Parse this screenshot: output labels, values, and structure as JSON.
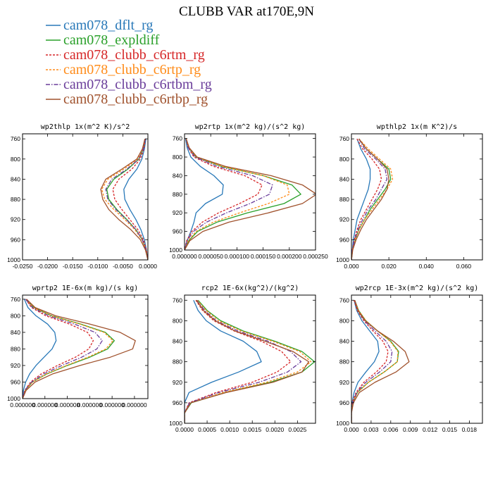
{
  "figure": {
    "title": "CLUBB VAR at170E,9N"
  },
  "colors": {
    "cam078_dflt_rg": "#2878b8",
    "cam078_expldiff": "#2aa02a",
    "cam078_clubb_c6rtm_rg": "#d62728",
    "cam078_clubb_c6rtp_rg": "#ff8c1a",
    "cam078_clubb_c6rtbm_rg": "#6a3d9a",
    "cam078_clubb_c6rtbp_rg": "#a0522d"
  },
  "legend": [
    {
      "name": "cam078_dflt_rg",
      "style": "solid"
    },
    {
      "name": "cam078_expldiff",
      "style": "solid"
    },
    {
      "name": "cam078_clubb_c6rtm_rg",
      "style": "dashed"
    },
    {
      "name": "cam078_clubb_c6rtp_rg",
      "style": "dashed"
    },
    {
      "name": "cam078_clubb_c6rtbm_rg",
      "style": "dashdot"
    },
    {
      "name": "cam078_clubb_c6rtbp_rg",
      "style": "solid"
    }
  ],
  "chart_data": [
    {
      "type": "line",
      "title": "wp2thlp  1x(m^2 K)/s^2",
      "xlim": [
        -0.025,
        0.0
      ],
      "ylim": [
        1000,
        750
      ],
      "xticks": [
        "-0.0250",
        "-0.0200",
        "-0.0150",
        "-0.0100",
        "-0.0050",
        "0.0000"
      ],
      "xtick_values": [
        -0.025,
        -0.02,
        -0.015,
        -0.01,
        -0.005,
        0.0
      ],
      "yticks": [
        760,
        800,
        840,
        880,
        920,
        960,
        1000
      ],
      "y": [
        760,
        780,
        800,
        820,
        840,
        860,
        880,
        900,
        920,
        940,
        960,
        980,
        1000
      ],
      "series": [
        {
          "name": "cam078_dflt_rg",
          "values": [
            -0.0004,
            -0.0007,
            -0.0012,
            -0.0022,
            -0.0038,
            -0.0048,
            -0.0046,
            -0.0036,
            -0.0024,
            -0.0014,
            -0.0007,
            -0.0003,
            0.0
          ]
        },
        {
          "name": "cam078_expldiff",
          "values": [
            -0.0005,
            -0.0009,
            -0.0018,
            -0.004,
            -0.0068,
            -0.0082,
            -0.0078,
            -0.0062,
            -0.0042,
            -0.0024,
            -0.0011,
            -0.0004,
            0.0
          ]
        },
        {
          "name": "cam078_clubb_c6rtm_rg",
          "values": [
            -0.0005,
            -0.0008,
            -0.0015,
            -0.0032,
            -0.0058,
            -0.007,
            -0.0066,
            -0.0052,
            -0.0036,
            -0.002,
            -0.0009,
            -0.0003,
            0.0
          ]
        },
        {
          "name": "cam078_clubb_c6rtp_rg",
          "values": [
            -0.0006,
            -0.001,
            -0.002,
            -0.0048,
            -0.008,
            -0.0092,
            -0.0086,
            -0.0068,
            -0.0046,
            -0.0026,
            -0.0012,
            -0.0004,
            0.0
          ]
        },
        {
          "name": "cam078_clubb_c6rtbm_rg",
          "values": [
            -0.0005,
            -0.0009,
            -0.0018,
            -0.0042,
            -0.0072,
            -0.0084,
            -0.008,
            -0.0064,
            -0.0043,
            -0.0024,
            -0.0011,
            -0.0004,
            0.0
          ]
        },
        {
          "name": "cam078_clubb_c6rtbp_rg",
          "values": [
            -0.0006,
            -0.0011,
            -0.0022,
            -0.0052,
            -0.0084,
            -0.0094,
            -0.009,
            -0.0078,
            -0.0058,
            -0.0034,
            -0.0015,
            -0.0005,
            0.0
          ]
        }
      ]
    },
    {
      "type": "line",
      "title": "wp2rtp  1x(m^2 kg)/(s^2 kg)",
      "xlim": [
        0.0,
        0.00025
      ],
      "ylim": [
        1000,
        750
      ],
      "xticks": [
        "0.000000",
        "0.000050",
        "0.000100",
        "0.000150",
        "0.000200",
        "0.000250"
      ],
      "xtick_values": [
        0.0,
        5e-05,
        0.0001,
        0.00015,
        0.0002,
        0.00025
      ],
      "yticks": [
        760,
        800,
        840,
        880,
        920,
        960,
        1000
      ],
      "y": [
        760,
        780,
        800,
        820,
        840,
        860,
        880,
        900,
        920,
        940,
        960,
        980,
        1000
      ],
      "series": [
        {
          "name": "cam078_dflt_rg",
          "values": [
            2e-06,
            5e-06,
            1.2e-05,
            3e-05,
            5.6e-05,
            7.4e-05,
            7.2e-05,
            4e-05,
            2.2e-05,
            1.8e-05,
            1.2e-05,
            5e-06,
            0.0
          ]
        },
        {
          "name": "cam078_expldiff",
          "values": [
            3e-06,
            8e-06,
            2.2e-05,
            7e-05,
            0.00015,
            0.000205,
            0.000222,
            0.00019,
            0.00012,
            6.2e-05,
            2.5e-05,
            8e-06,
            0.0
          ]
        },
        {
          "name": "cam078_clubb_c6rtm_rg",
          "values": [
            3e-06,
            7e-06,
            1.8e-05,
            5.5e-05,
            0.000115,
            0.000148,
            0.00014,
            0.000105,
            6.5e-05,
            3.4e-05,
            1.4e-05,
            4e-06,
            0.0
          ]
        },
        {
          "name": "cam078_clubb_c6rtp_rg",
          "values": [
            3e-06,
            8e-06,
            2.2e-05,
            7.2e-05,
            0.00015,
            0.000196,
            0.0002,
            0.00016,
            0.000105,
            5.5e-05,
            2.2e-05,
            7e-06,
            0.0
          ]
        },
        {
          "name": "cam078_clubb_c6rtbm_rg",
          "values": [
            3e-06,
            7e-06,
            2e-05,
            6.2e-05,
            0.00013,
            0.000168,
            0.000162,
            0.000125,
            8e-05,
            4.2e-05,
            1.7e-05,
            5e-06,
            0.0
          ]
        },
        {
          "name": "cam078_clubb_c6rtbp_rg",
          "values": [
            3e-06,
            9e-06,
            2.4e-05,
            7.8e-05,
            0.000165,
            0.000225,
            0.000252,
            0.000225,
            0.00016,
            8.5e-05,
            3.5e-05,
            1e-05,
            0.0
          ]
        }
      ]
    },
    {
      "type": "line",
      "title": "wpthlp2  1x(m K^2)/s",
      "xlim": [
        0.0,
        0.07
      ],
      "ylim": [
        1000,
        750
      ],
      "xticks": [
        "0.000",
        "0.020",
        "0.040",
        "0.060"
      ],
      "xtick_values": [
        0.0,
        0.02,
        0.04,
        0.06
      ],
      "yticks": [
        760,
        800,
        840,
        880,
        920,
        960,
        1000
      ],
      "y": [
        760,
        780,
        800,
        820,
        840,
        860,
        880,
        900,
        920,
        940,
        960,
        980,
        1000
      ],
      "series": [
        {
          "name": "cam078_dflt_rg",
          "values": [
            0.003,
            0.005,
            0.008,
            0.01,
            0.01,
            0.009,
            0.007,
            0.005,
            0.003,
            0.002,
            0.001,
            0.0005,
            0.0
          ]
        },
        {
          "name": "cam078_expldiff",
          "values": [
            0.004,
            0.008,
            0.014,
            0.02,
            0.021,
            0.018,
            0.014,
            0.01,
            0.007,
            0.004,
            0.002,
            0.0006,
            0.0
          ]
        },
        {
          "name": "cam078_clubb_c6rtm_rg",
          "values": [
            0.003,
            0.006,
            0.011,
            0.015,
            0.016,
            0.014,
            0.011,
            0.008,
            0.005,
            0.003,
            0.0015,
            0.0005,
            0.0
          ]
        },
        {
          "name": "cam078_clubb_c6rtp_rg",
          "values": [
            0.004,
            0.009,
            0.015,
            0.021,
            0.022,
            0.019,
            0.015,
            0.011,
            0.007,
            0.004,
            0.002,
            0.0006,
            0.0
          ]
        },
        {
          "name": "cam078_clubb_c6rtbm_rg",
          "values": [
            0.004,
            0.007,
            0.013,
            0.018,
            0.019,
            0.016,
            0.013,
            0.009,
            0.006,
            0.0035,
            0.0017,
            0.0005,
            0.0
          ]
        },
        {
          "name": "cam078_clubb_c6rtbp_rg",
          "values": [
            0.004,
            0.008,
            0.014,
            0.019,
            0.02,
            0.019,
            0.016,
            0.012,
            0.008,
            0.005,
            0.0025,
            0.0007,
            0.0
          ]
        }
      ]
    },
    {
      "type": "line",
      "title": "wprtp2  1E-6x(m kg)/(s kg)",
      "xlim": [
        0.0,
        2.8e-07
      ],
      "ylim": [
        1000,
        750
      ],
      "xticks": [
        "0.000000",
        "0.000000",
        "0.000000",
        "0.000000",
        "0.000000",
        "0.000000"
      ],
      "xtick_values": [
        0.0,
        5e-08,
        1e-07,
        1.5e-07,
        2e-07,
        2.5e-07
      ],
      "yticks": [
        760,
        800,
        840,
        880,
        920,
        960,
        1000
      ],
      "y": [
        760,
        780,
        800,
        820,
        840,
        860,
        880,
        900,
        920,
        940,
        960,
        980,
        1000
      ],
      "series": [
        {
          "name": "cam078_dflt_rg",
          "values": [
            4e-09,
            1.2e-08,
            3e-08,
            5.6e-08,
            7.2e-08,
            7.5e-08,
            6.6e-08,
            4.8e-08,
            3e-08,
            1.6e-08,
            7e-09,
            2e-09,
            0.0
          ]
        },
        {
          "name": "cam078_expldiff",
          "values": [
            8e-09,
            2.5e-08,
            6.5e-08,
            1.3e-07,
            1.85e-07,
            2.05e-07,
            1.9e-07,
            1.5e-07,
            1e-07,
            5.5e-08,
            2.2e-08,
            6e-09,
            0.0
          ]
        },
        {
          "name": "cam078_clubb_c6rtm_rg",
          "values": [
            7e-09,
            2e-08,
            5.2e-08,
            1.05e-07,
            1.45e-07,
            1.58e-07,
            1.48e-07,
            1.18e-07,
            7.8e-08,
            4.2e-08,
            1.8e-08,
            5e-09,
            0.0
          ]
        },
        {
          "name": "cam078_clubb_c6rtp_rg",
          "values": [
            8e-09,
            2.4e-08,
            6.4e-08,
            1.28e-07,
            1.82e-07,
            2.02e-07,
            1.86e-07,
            1.46e-07,
            9.8e-08,
            5.4e-08,
            2.2e-08,
            6e-09,
            0.0
          ]
        },
        {
          "name": "cam078_clubb_c6rtbm_rg",
          "values": [
            7e-09,
            2.2e-08,
            5.8e-08,
            1.16e-07,
            1.62e-07,
            1.78e-07,
            1.66e-07,
            1.32e-07,
            8.8e-08,
            4.8e-08,
            2e-08,
            5e-09,
            0.0
          ]
        },
        {
          "name": "cam078_clubb_c6rtbp_rg",
          "values": [
            9e-09,
            2.8e-08,
            7.4e-08,
            1.5e-07,
            2.18e-07,
            2.52e-07,
            2.46e-07,
            1.96e-07,
            1.28e-07,
            6.8e-08,
            2.8e-08,
            8e-09,
            0.0
          ]
        }
      ]
    },
    {
      "type": "line",
      "title": "rcp2  1E-6x(kg^2)/(kg^2)",
      "xlim": [
        0.0,
        0.0029
      ],
      "ylim": [
        1000,
        750
      ],
      "xticks": [
        "0.0000",
        "0.0005",
        "0.0010",
        "0.0015",
        "0.0020",
        "0.0025"
      ],
      "xtick_values": [
        0.0,
        0.0005,
        0.001,
        0.0015,
        0.002,
        0.0025
      ],
      "yticks": [
        760,
        800,
        840,
        880,
        920,
        960,
        1000
      ],
      "y": [
        760,
        780,
        800,
        820,
        840,
        860,
        880,
        900,
        920,
        940,
        960,
        980,
        1000
      ],
      "series": [
        {
          "name": "cam078_dflt_rg",
          "values": [
            0.0002,
            0.0003,
            0.00048,
            0.0008,
            0.0013,
            0.0016,
            0.0017,
            0.0012,
            0.0006,
            0.0001,
            0.0,
            0.0,
            0.0
          ]
        },
        {
          "name": "cam078_expldiff",
          "values": [
            0.0003,
            0.0005,
            0.0008,
            0.0013,
            0.002,
            0.0026,
            0.00288,
            0.0026,
            0.0019,
            0.0009,
            0.00015,
            0.0,
            0.0
          ]
        },
        {
          "name": "cam078_clubb_c6rtm_rg",
          "values": [
            0.00025,
            0.0004,
            0.00065,
            0.0011,
            0.0017,
            0.00215,
            0.00235,
            0.00205,
            0.0015,
            0.0007,
            0.0001,
            0.0,
            0.0
          ]
        },
        {
          "name": "cam078_clubb_c6rtp_rg",
          "values": [
            0.00028,
            0.00048,
            0.00075,
            0.00125,
            0.00195,
            0.00255,
            0.0028,
            0.0025,
            0.00182,
            0.00085,
            0.00013,
            0.0,
            0.0
          ]
        },
        {
          "name": "cam078_clubb_c6rtbm_rg",
          "values": [
            0.00027,
            0.00045,
            0.0007,
            0.00118,
            0.00185,
            0.00235,
            0.00258,
            0.00228,
            0.00165,
            0.00076,
            0.00011,
            0.0,
            0.0
          ]
        },
        {
          "name": "cam078_clubb_c6rtbp_rg",
          "values": [
            0.00026,
            0.00042,
            0.00068,
            0.00112,
            0.00178,
            0.0024,
            0.00275,
            0.0026,
            0.00196,
            0.00092,
            0.00014,
            0.0,
            0.0
          ]
        }
      ]
    },
    {
      "type": "line",
      "title": "wp2rcp  1E-3x(m^2 kg)/(s^2 kg)",
      "xlim": [
        0.0,
        0.02
      ],
      "ylim": [
        1000,
        750
      ],
      "xticks": [
        "0.000",
        "0.003",
        "0.006",
        "0.009",
        "0.012",
        "0.015",
        "0.018"
      ],
      "xtick_values": [
        0.0,
        0.003,
        0.006,
        0.009,
        0.012,
        0.015,
        0.018
      ],
      "yticks": [
        760,
        800,
        840,
        880,
        920,
        960,
        1000
      ],
      "y": [
        760,
        780,
        800,
        820,
        840,
        860,
        880,
        900,
        920,
        940,
        960,
        980,
        1000
      ],
      "series": [
        {
          "name": "cam078_dflt_rg",
          "values": [
            0.0004,
            0.0008,
            0.0016,
            0.0028,
            0.004,
            0.0042,
            0.0035,
            0.0022,
            0.001,
            0.0004,
            0.0001,
            0.0,
            0.0
          ]
        },
        {
          "name": "cam078_expldiff",
          "values": [
            0.0005,
            0.0011,
            0.0022,
            0.004,
            0.006,
            0.0072,
            0.007,
            0.005,
            0.0026,
            0.0009,
            0.0002,
            0.0,
            0.0
          ]
        },
        {
          "name": "cam078_clubb_c6rtm_rg",
          "values": [
            0.0004,
            0.0009,
            0.0019,
            0.0033,
            0.0048,
            0.0056,
            0.0053,
            0.0038,
            0.0019,
            0.0007,
            0.0001,
            0.0,
            0.0
          ]
        },
        {
          "name": "cam078_clubb_c6rtp_rg",
          "values": [
            0.0005,
            0.0011,
            0.0022,
            0.004,
            0.0059,
            0.0071,
            0.007,
            0.005,
            0.0026,
            0.0009,
            0.0002,
            0.0,
            0.0
          ]
        },
        {
          "name": "cam078_clubb_c6rtbm_rg",
          "values": [
            0.0005,
            0.001,
            0.002,
            0.0036,
            0.0053,
            0.0062,
            0.006,
            0.0043,
            0.0022,
            0.0008,
            0.0002,
            0.0,
            0.0
          ]
        },
        {
          "name": "cam078_clubb_c6rtbp_rg",
          "values": [
            0.0005,
            0.001,
            0.0021,
            0.004,
            0.0064,
            0.0082,
            0.0088,
            0.0068,
            0.0036,
            0.0012,
            0.0003,
            0.0,
            0.0
          ]
        }
      ]
    }
  ]
}
